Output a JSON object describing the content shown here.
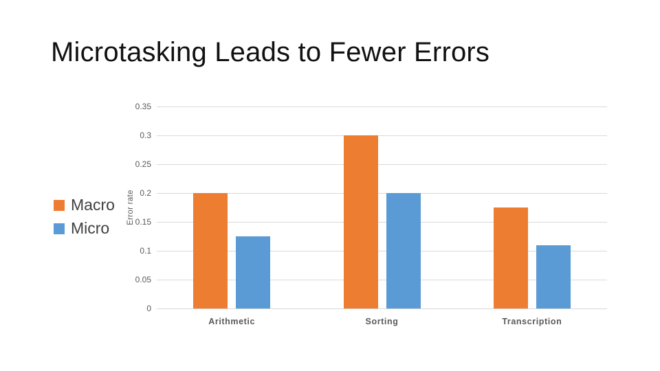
{
  "slide": {
    "title": "Microtasking Leads to Fewer Errors"
  },
  "chart_data": {
    "type": "bar",
    "title": "Microtasking Leads to Fewer Errors",
    "categories": [
      "Arithmetic",
      "Sorting",
      "Transcription"
    ],
    "series": [
      {
        "name": "Macro",
        "color": "#ED7D31",
        "values": [
          0.2,
          0.3,
          0.175
        ]
      },
      {
        "name": "Micro",
        "color": "#5B9BD5",
        "values": [
          0.125,
          0.2,
          0.11
        ]
      }
    ],
    "xlabel": "",
    "ylabel": "Error rate",
    "ylim": [
      0,
      0.35
    ],
    "ytick_step": 0.05,
    "yticks": [
      "0.35",
      "0.3",
      "0.25",
      "0.2",
      "0.15",
      "0.1",
      "0.05",
      "0"
    ],
    "grid": true,
    "legend_position": "left"
  },
  "colors": {
    "background": "#FFFFFF",
    "gridline": "#D9D9D9",
    "axis_text": "#595959",
    "title_text": "#111111",
    "legend_text": "#404040"
  }
}
